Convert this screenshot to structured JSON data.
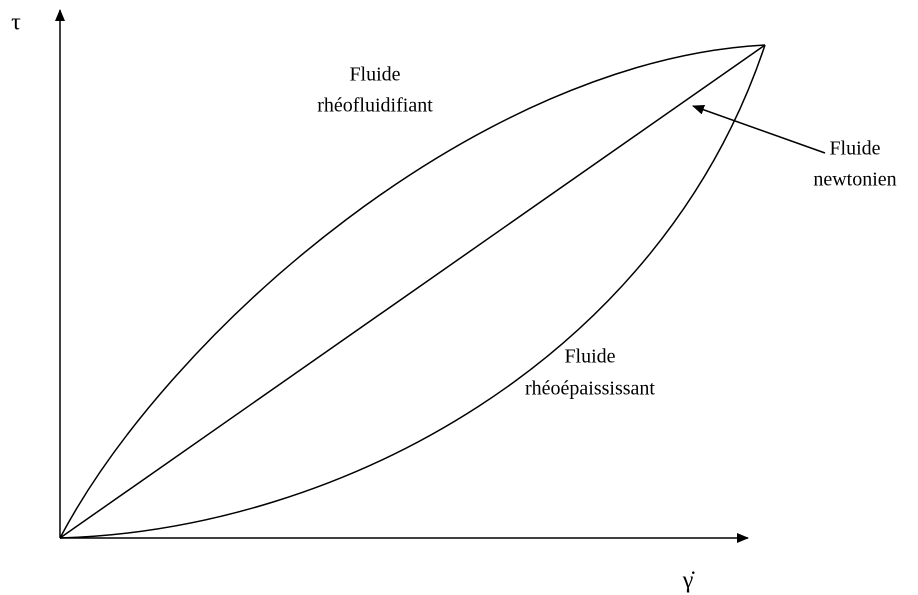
{
  "axes": {
    "y_label": "τ",
    "x_label": "γ̇"
  },
  "labels": [
    {
      "lines": [
        "Fluide",
        "rhéofluidifiant"
      ]
    },
    {
      "lines": [
        "Fluide",
        "newtonien"
      ]
    },
    {
      "lines": [
        "Fluide",
        "rhéoépaississant"
      ]
    }
  ]
}
